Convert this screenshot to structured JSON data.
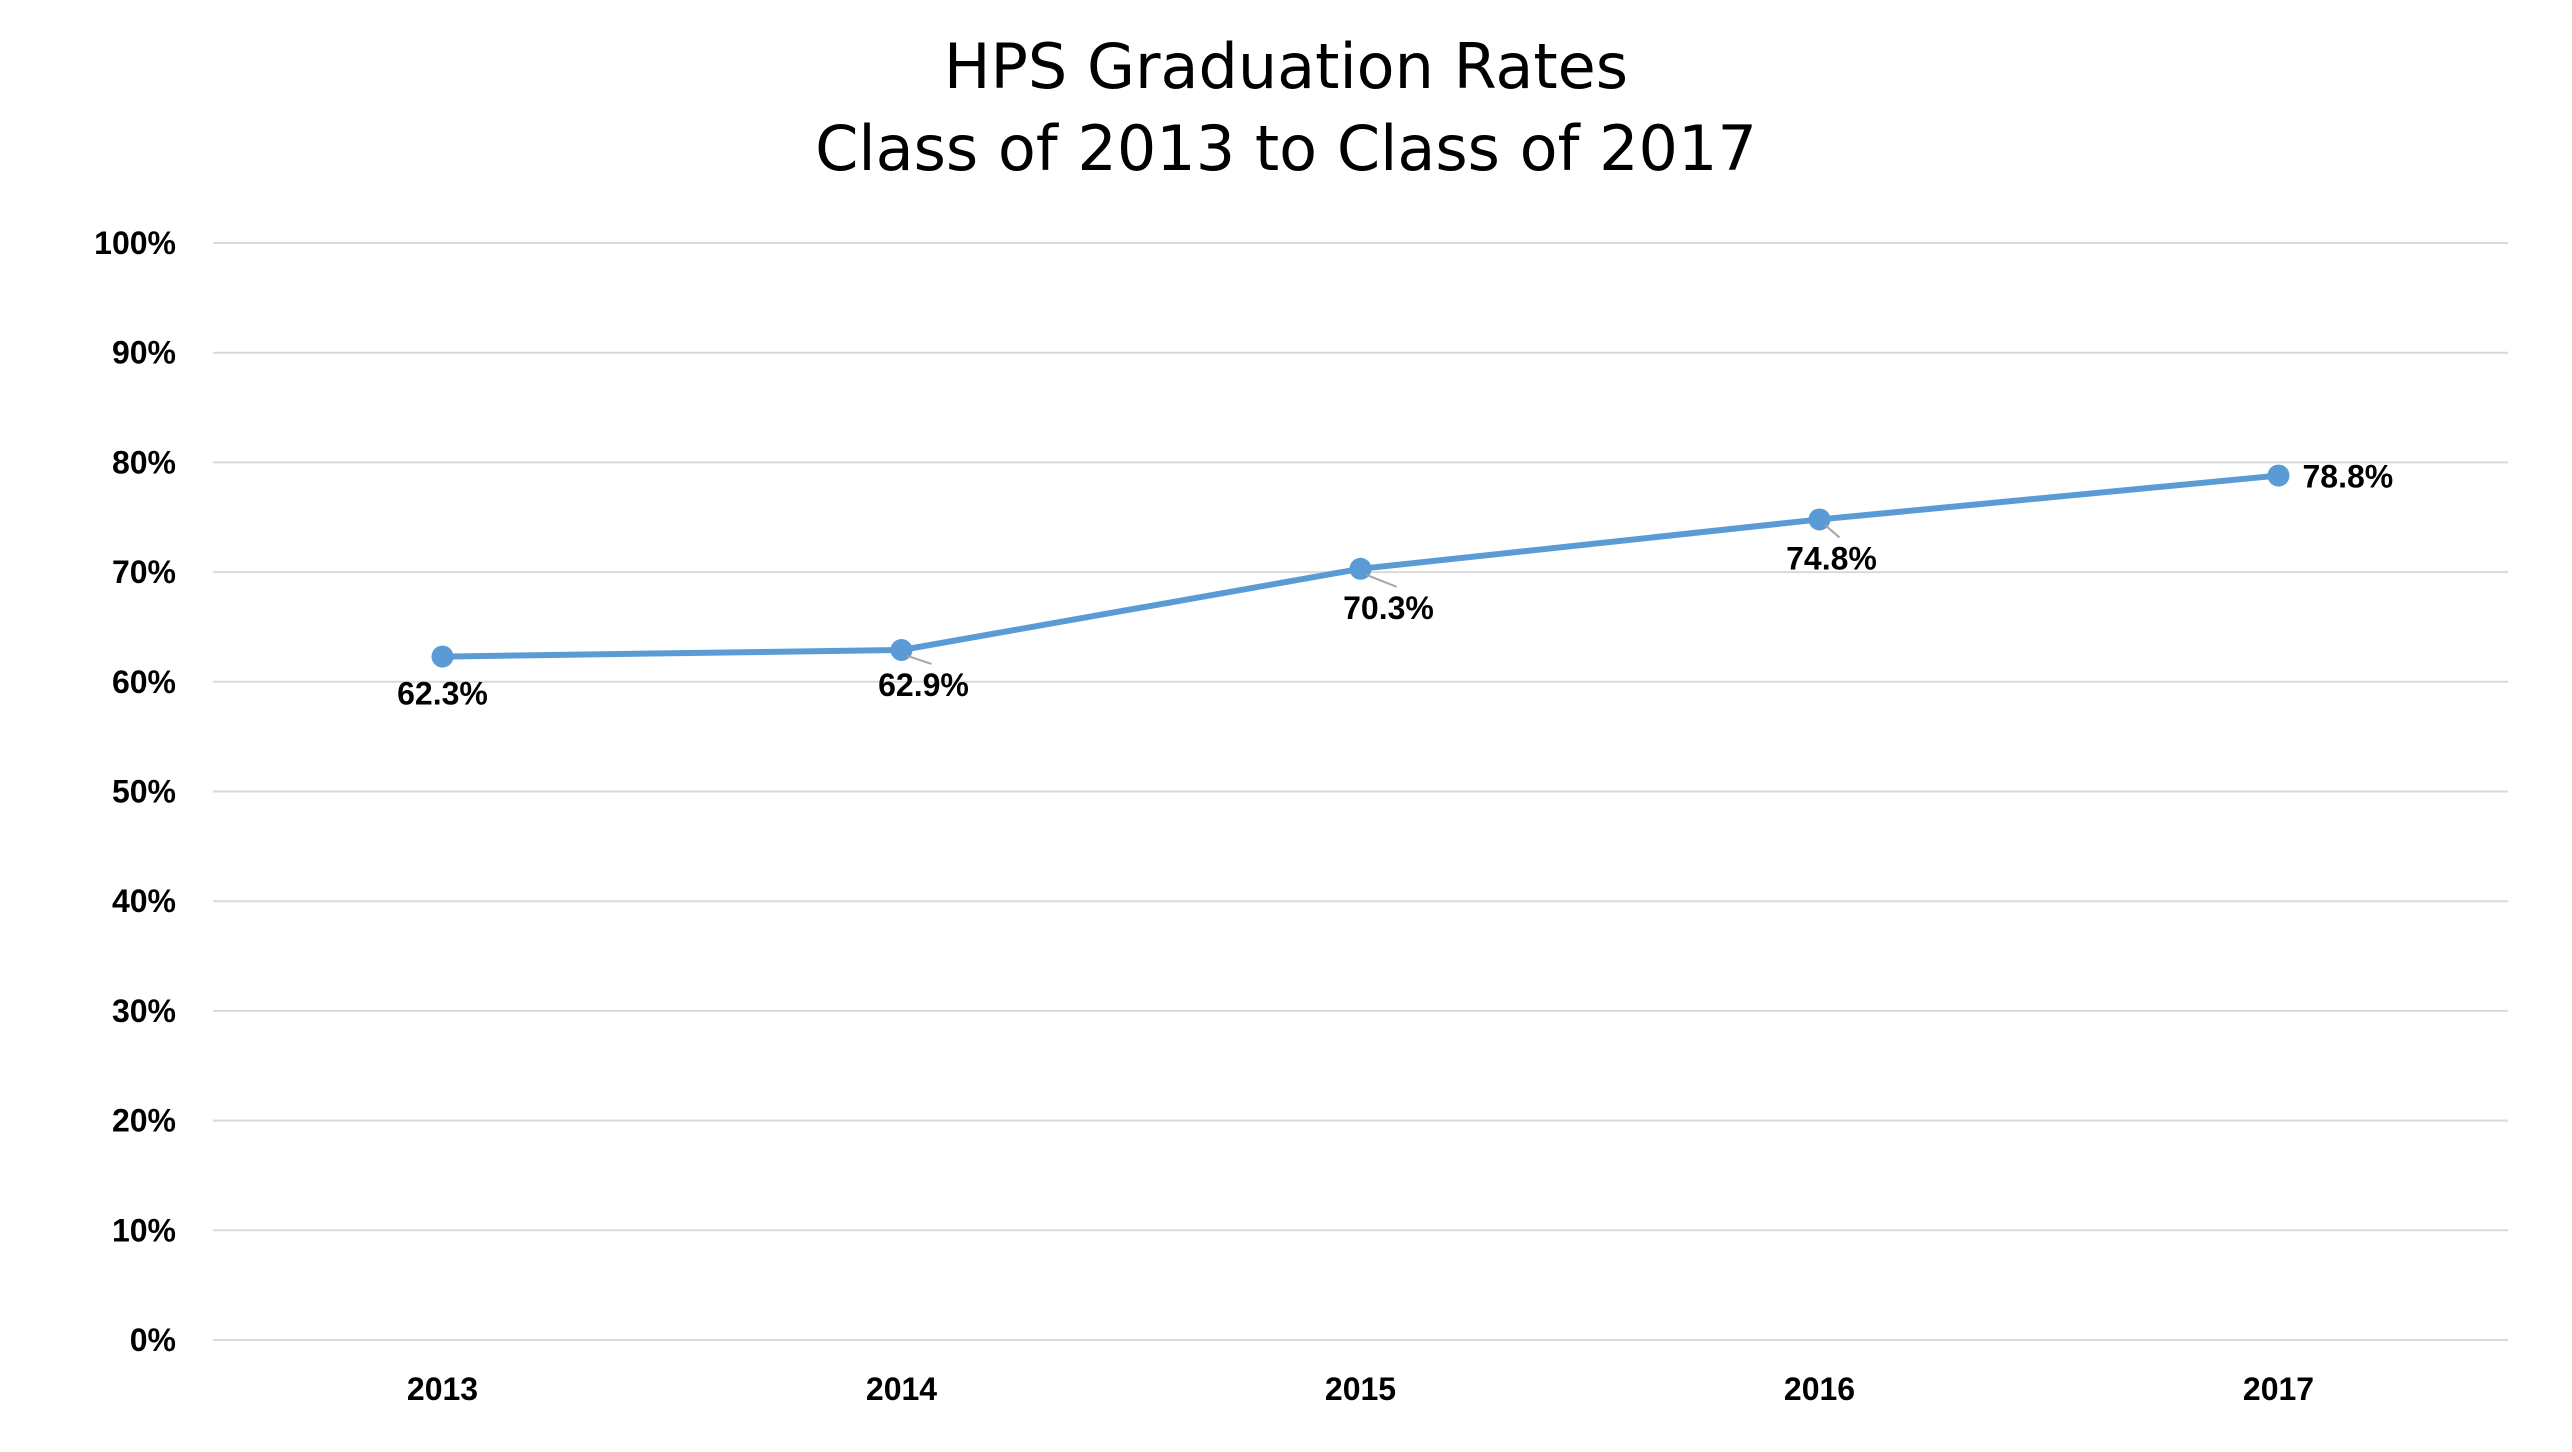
{
  "chart_data": {
    "type": "line",
    "title": [
      "HPS Graduation Rates",
      "Class of 2013 to Class of 2017"
    ],
    "xlabel": "",
    "ylabel": "",
    "categories": [
      "2013",
      "2014",
      "2015",
      "2016",
      "2017"
    ],
    "series": [
      {
        "values": [
          62.3,
          62.9,
          70.3,
          74.8,
          78.8
        ],
        "data_labels": [
          "62.3%",
          "62.9%",
          "70.3%",
          "74.8%",
          "78.8%"
        ],
        "color": "#5b9bd5"
      }
    ],
    "ylim": [
      0,
      100
    ],
    "yticks": [
      0,
      10,
      20,
      30,
      40,
      50,
      60,
      70,
      80,
      90,
      100
    ],
    "ytick_labels": [
      "0%",
      "10%",
      "20%",
      "30%",
      "40%",
      "50%",
      "60%",
      "70%",
      "80%",
      "90%",
      "100%"
    ],
    "grid": true,
    "legend": "none"
  }
}
